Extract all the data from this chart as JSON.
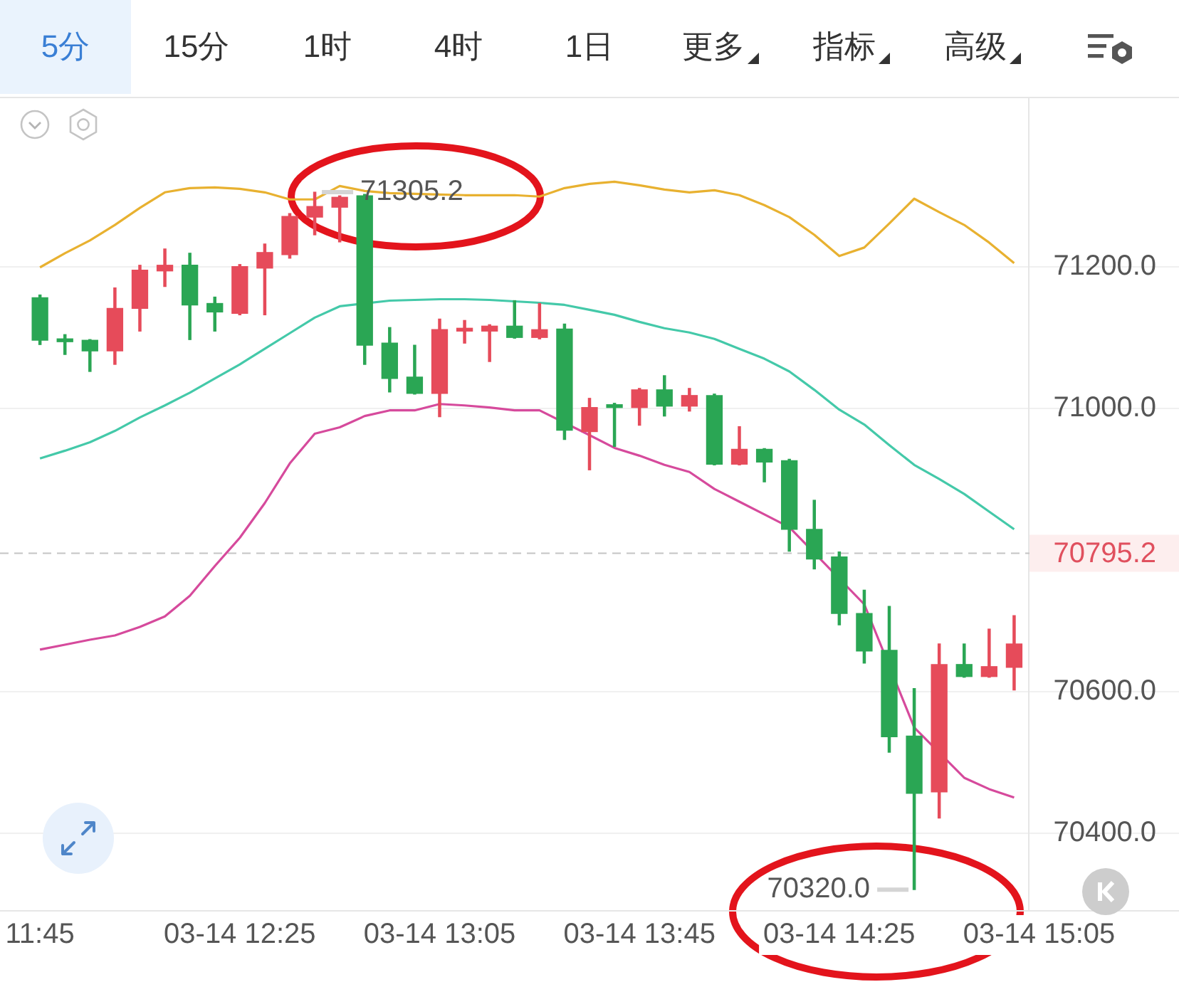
{
  "chart_data": {
    "type": "candlestick",
    "x": [
      "--03-14T11:45",
      "--03-14T11:50",
      "--03-14T11:55",
      "--03-14T12:00",
      "--03-14T12:05",
      "--03-14T12:10",
      "--03-14T12:15",
      "--03-14T12:20",
      "--03-14T12:25",
      "--03-14T12:30",
      "--03-14T12:35",
      "--03-14T12:40",
      "--03-14T12:45",
      "--03-14T12:50",
      "--03-14T12:55",
      "--03-14T13:00",
      "--03-14T13:05",
      "--03-14T13:10",
      "--03-14T13:15",
      "--03-14T13:20",
      "--03-14T13:25",
      "--03-14T13:30",
      "--03-14T13:35",
      "--03-14T13:40",
      "--03-14T13:45",
      "--03-14T13:50",
      "--03-14T13:55",
      "--03-14T14:00",
      "--03-14T14:05",
      "--03-14T14:10",
      "--03-14T14:15",
      "--03-14T14:20",
      "--03-14T14:25",
      "--03-14T14:30",
      "--03-14T14:35",
      "--03-14T14:40",
      "--03-14T14:45",
      "--03-14T14:50",
      "--03-14T14:55",
      "--03-14T15:00"
    ],
    "ohlc": [
      [
        71156,
        71160,
        71090,
        71096
      ],
      [
        71097,
        71104,
        71076,
        71094
      ],
      [
        71096,
        71097,
        71052,
        71081
      ],
      [
        71081,
        71170,
        71062,
        71141
      ],
      [
        71141,
        71202,
        71109,
        71195
      ],
      [
        71194,
        71225,
        71172,
        71202
      ],
      [
        71202,
        71219,
        71097,
        71146
      ],
      [
        71148,
        71157,
        71109,
        71136
      ],
      [
        71134,
        71203,
        71132,
        71200
      ],
      [
        71198,
        71232,
        71132,
        71220
      ],
      [
        71217,
        71275,
        71212,
        71271
      ],
      [
        71270,
        71305.2,
        71245,
        71285
      ],
      [
        71284,
        71300,
        71235,
        71298
      ],
      [
        71300,
        71302,
        71062,
        71089
      ],
      [
        71092,
        71114,
        71023,
        71042
      ],
      [
        71044,
        71089,
        71020,
        71021
      ],
      [
        71021,
        71126,
        70988,
        71111
      ],
      [
        71109,
        71124,
        71092,
        71112
      ],
      [
        71109,
        71118,
        71066,
        71116
      ],
      [
        71116,
        71152,
        71099,
        71100
      ],
      [
        71100,
        71148,
        71098,
        71111
      ],
      [
        71112,
        71119,
        70956,
        70969
      ],
      [
        70967,
        71014,
        70913,
        71001
      ],
      [
        71004,
        71007,
        70946,
        71001
      ],
      [
        71001,
        71028,
        70976,
        71026
      ],
      [
        71026,
        71046,
        70989,
        71003
      ],
      [
        71003,
        71028,
        70996,
        71018
      ],
      [
        71018,
        71020,
        70920,
        70921
      ],
      [
        70921,
        70974,
        70920,
        70942
      ],
      [
        70942,
        70943,
        70896,
        70924
      ],
      [
        70926,
        70928,
        70798,
        70829
      ],
      [
        70829,
        70870,
        70773,
        70787
      ],
      [
        70790,
        70797,
        70694,
        70710
      ],
      [
        70710,
        70743,
        70640,
        70657
      ],
      [
        70658,
        70720,
        70514,
        70536
      ],
      [
        70537,
        70604,
        70320.0,
        70456
      ],
      [
        70458,
        70667,
        70421,
        70638
      ],
      [
        70638,
        70667,
        70620,
        70621
      ],
      [
        70621,
        70688,
        70620,
        70635
      ],
      [
        70634,
        70707,
        70602,
        70667
      ]
    ],
    "colors": [
      "#2aa654",
      "#2aa654",
      "#2aa654",
      "#e64b5a",
      "#e64b5a",
      "#e64b5a",
      "#2aa654",
      "#2aa654",
      "#e64b5a",
      "#e64b5a",
      "#e64b5a",
      "#e64b5a",
      "#e64b5a",
      "#2aa654",
      "#2aa654",
      "#2aa654",
      "#e64b5a",
      "#e64b5a",
      "#e64b5a",
      "#2aa654",
      "#e64b5a",
      "#2aa654",
      "#e64b5a",
      "#2aa654",
      "#e64b5a",
      "#2aa654",
      "#e64b5a",
      "#2aa654",
      "#e64b5a",
      "#2aa654",
      "#2aa654",
      "#2aa654",
      "#2aa654",
      "#2aa654",
      "#2aa654",
      "#2aa654",
      "#e64b5a",
      "#2aa654",
      "#e64b5a",
      "#e64b5a"
    ],
    "series": [
      {
        "type": "line",
        "color": "#e8b130",
        "values": [
          71199,
          71219,
          71237,
          71259,
          71283,
          71305,
          71311,
          71312,
          71310,
          71305,
          71295,
          71295,
          71314,
          71307,
          71304,
          71303,
          71302,
          71301,
          71301,
          71301,
          71299,
          71311,
          71317,
          71320,
          71315,
          71309,
          71305,
          71308,
          71301,
          71287,
          71270,
          71245,
          71215,
          71227,
          71261,
          71296,
          71277,
          71259,
          71234,
          71205
        ]
      },
      {
        "type": "line",
        "color": "#44c9a9",
        "values": [
          70929,
          70940,
          70952,
          70968,
          70987,
          71004,
          71022,
          71042,
          71062,
          71084,
          71106,
          71128,
          71144,
          null,
          71152,
          71153,
          71154,
          71154,
          71153,
          71151,
          71149,
          71146,
          71139,
          71132,
          71122,
          71113,
          71107,
          71098,
          71084,
          71070,
          71052,
          71026,
          70998,
          70977,
          70948,
          70920,
          70900,
          70879,
          70854,
          70829
        ]
      },
      {
        "type": "line",
        "color": "#d64a9c",
        "values": [
          70659,
          70666,
          70673,
          70679,
          70691,
          70706,
          70735,
          70777,
          70817,
          70866,
          70922,
          70964,
          70973,
          70989,
          70997,
          70997,
          71006,
          71004,
          71001,
          70997,
          70997,
          null,
          70962,
          70944,
          70933,
          70920,
          70910,
          70886,
          70868,
          70850,
          70832,
          null,
          null,
          70723,
          null,
          70549,
          null,
          70478,
          70462,
          70450
        ]
      }
    ],
    "xlim": [
      "--03-14T11:37",
      "--03-14T15:33"
    ],
    "xticks": [
      {
        "value": "--03-14T11:45",
        "label": "11:45"
      },
      {
        "value": "--03-14T12:25",
        "label": "03-14 12:25"
      },
      {
        "value": "--03-14T13:05",
        "label": "03-14 13:05"
      },
      {
        "value": "--03-14T13:45",
        "label": "03-14 13:45"
      },
      {
        "value": "--03-14T14:25",
        "label": "03-14 14:25"
      },
      {
        "value": "--03-14T15:05",
        "label": "03-14 15:05"
      }
    ],
    "ylim": [
      70290,
      71440
    ],
    "yticks": [
      {
        "value": 70400,
        "label": "70400.0"
      },
      {
        "value": 70600,
        "label": "70600.0"
      },
      {
        "value": 71000,
        "label": "71000.0"
      },
      {
        "value": 71200,
        "label": "71200.0"
      }
    ],
    "grid": "y",
    "marker": "none",
    "ref_lines": [
      {
        "axis": "y",
        "value": 70795.2,
        "label": "70795.2",
        "color": "#c4c4c4",
        "line_style": "dashed"
      }
    ],
    "annotations": [
      "5分",
      "15分",
      "1时",
      "4时",
      "1日",
      "更多",
      "指标",
      "高级",
      {
        "text": "71305.2",
        "x": "--03-14T12:40",
        "y": 71305.2
      },
      {
        "text": "70320.0",
        "x": "--03-14T14:40",
        "y": 70320.0
      }
    ]
  }
}
